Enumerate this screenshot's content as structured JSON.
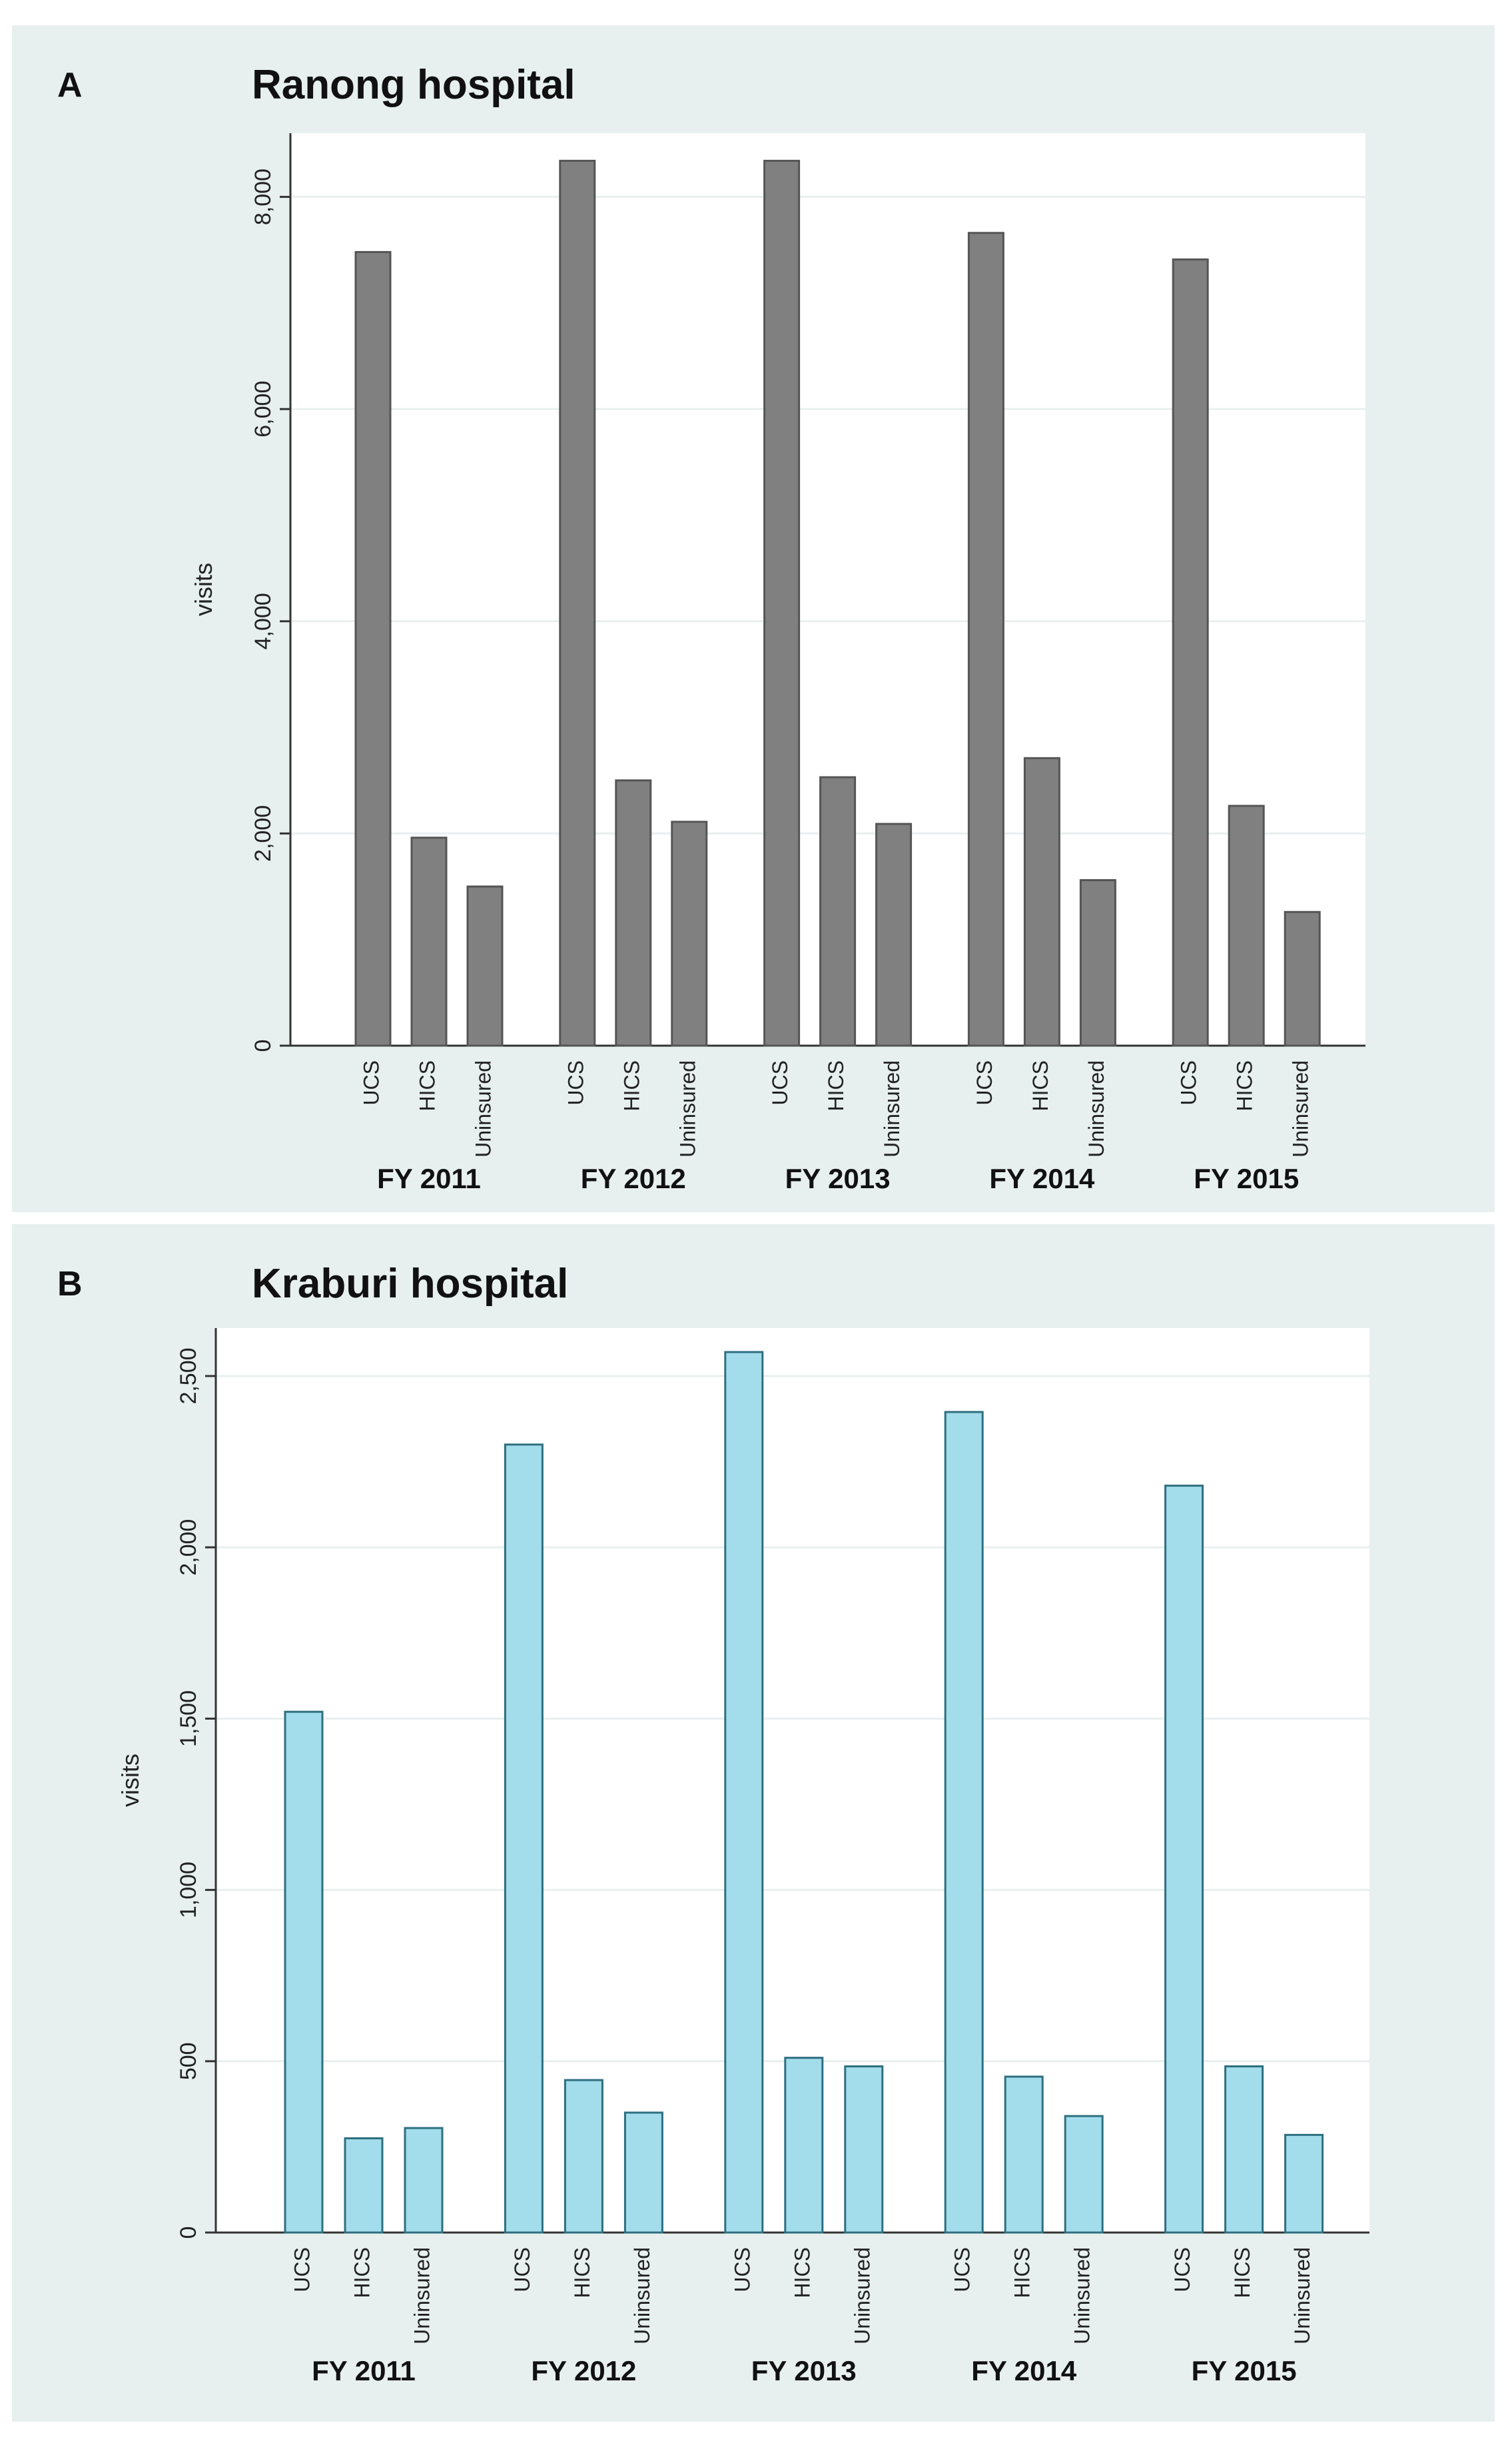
{
  "chart_data": [
    {
      "type": "bar",
      "panel_label": "A",
      "title": "Ranong hospital",
      "ylabel": "visits",
      "xlabel": "",
      "ylim": [
        0,
        8600
      ],
      "yticks": [
        0,
        2000,
        4000,
        6000,
        8000
      ],
      "ytick_labels": [
        "0",
        "2,000",
        "4,000",
        "6,000",
        "8,000"
      ],
      "categories": [
        "UCS",
        "HICS",
        "Uninsured"
      ],
      "groups": [
        "FY 2011",
        "FY 2012",
        "FY 2013",
        "FY 2014",
        "FY 2015"
      ],
      "series": [
        {
          "name": "FY 2011",
          "values": [
            7480,
            1960,
            1500
          ]
        },
        {
          "name": "FY 2012",
          "values": [
            8340,
            2500,
            2110
          ]
        },
        {
          "name": "FY 2013",
          "values": [
            8340,
            2530,
            2090
          ]
        },
        {
          "name": "FY 2014",
          "values": [
            7660,
            2710,
            1560
          ]
        },
        {
          "name": "FY 2015",
          "values": [
            7410,
            2260,
            1260
          ]
        }
      ],
      "bar_color": "#808080",
      "grid": true
    },
    {
      "type": "bar",
      "panel_label": "B",
      "title": "Kraburi hospital",
      "ylabel": "visits",
      "xlabel": "",
      "ylim": [
        0,
        2640
      ],
      "yticks": [
        0,
        500,
        1000,
        1500,
        2000,
        2500
      ],
      "ytick_labels": [
        "0",
        "500",
        "1,000",
        "1,500",
        "2,000",
        "2,500"
      ],
      "categories": [
        "UCS",
        "HICS",
        "Uninsured"
      ],
      "groups": [
        "FY 2011",
        "FY 2012",
        "FY 2013",
        "FY 2014",
        "FY 2015"
      ],
      "series": [
        {
          "name": "FY 2011",
          "values": [
            1520,
            275,
            305
          ]
        },
        {
          "name": "FY 2012",
          "values": [
            2300,
            445,
            350
          ]
        },
        {
          "name": "FY 2013",
          "values": [
            2570,
            510,
            485
          ]
        },
        {
          "name": "FY 2014",
          "values": [
            2395,
            455,
            340
          ]
        },
        {
          "name": "FY 2015",
          "values": [
            2180,
            485,
            285
          ]
        }
      ],
      "bar_color": "#a3dcea",
      "grid": true
    }
  ]
}
